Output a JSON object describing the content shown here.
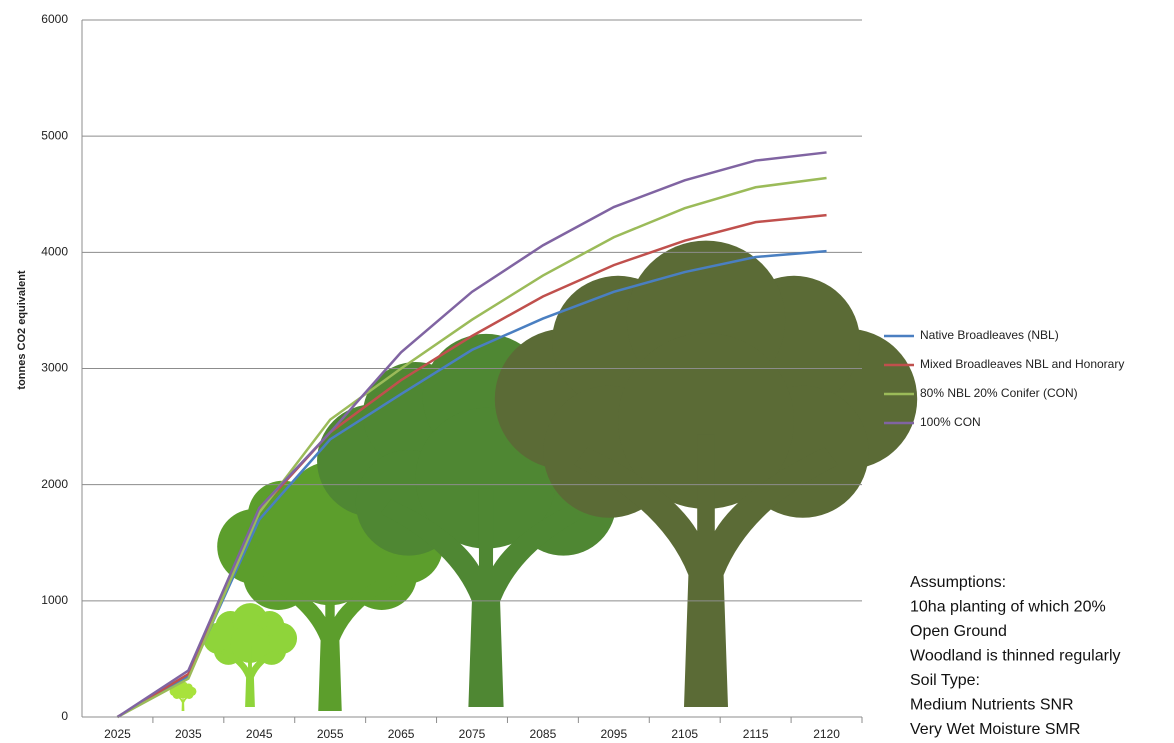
{
  "chart_data": {
    "type": "line",
    "y_label": "tonnes CO2 equivalent",
    "categories": [
      "2025",
      "2035",
      "2045",
      "2055",
      "2065",
      "2075",
      "2085",
      "2095",
      "2105",
      "2115",
      "2120"
    ],
    "series": [
      {
        "name": "Native Broadleaves (NBL)",
        "color": "#4a7fc1",
        "values": [
          0,
          350,
          1700,
          2390,
          2780,
          3160,
          3430,
          3660,
          3830,
          3960,
          4010
        ]
      },
      {
        "name": "Mixed Broadleaves NBL and Honorary",
        "color": "#c0504d",
        "values": [
          0,
          370,
          1780,
          2450,
          2900,
          3280,
          3620,
          3890,
          4100,
          4260,
          4320
        ]
      },
      {
        "name": "80% NBL 20% Conifer (CON)",
        "color": "#9bbb59",
        "values": [
          0,
          330,
          1760,
          2560,
          3000,
          3420,
          3800,
          4130,
          4380,
          4560,
          4640
        ]
      },
      {
        "name": "100% CON",
        "color": "#8064a2",
        "values": [
          0,
          400,
          1800,
          2450,
          3140,
          3660,
          4060,
          4390,
          4620,
          4790,
          4860
        ]
      }
    ],
    "ylim": [
      0,
      6000
    ],
    "yticks": [
      0,
      1000,
      2000,
      3000,
      4000,
      5000,
      6000
    ],
    "grid": true,
    "assumptions": [
      "Assumptions:",
      "10ha planting of which 20%",
      "Open Ground",
      "Woodland is  thinned regularly",
      "Soil Type:",
      "Medium Nutrients SNR",
      "Very Wet Moisture  SMR"
    ]
  }
}
